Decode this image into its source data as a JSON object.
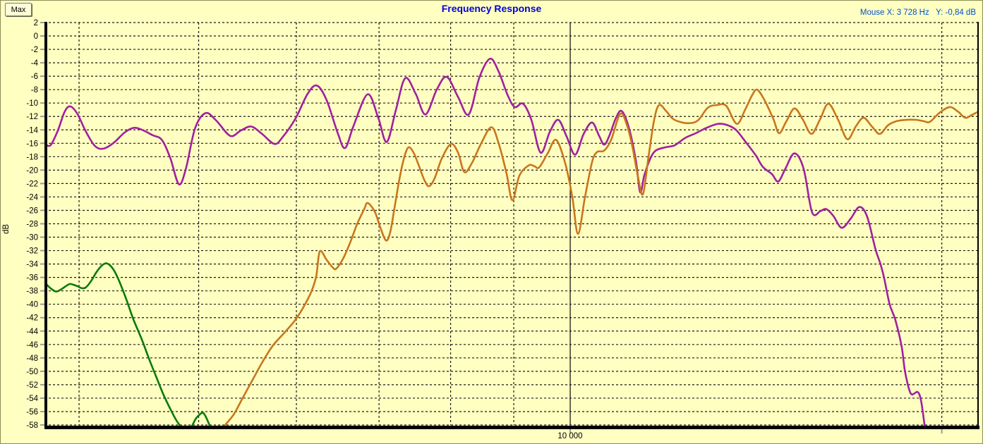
{
  "window": {
    "max_button_label": "Max"
  },
  "header": {
    "title": "Frequency Response",
    "mouse_readout": "Mouse X: 3 728 Hz   Y: -0,84 dB"
  },
  "colors": {
    "background": "#FFFFC1",
    "title_text": "#0000DE",
    "mouse_readout_text": "#0052CC",
    "grid": "#1a1a1a",
    "axis": "#000000",
    "tick": "#9a9a9a",
    "label_text": "#000000",
    "purple_trace": "#A020A0",
    "orange_trace": "#C8761E",
    "green_trace": "#0A7A0A"
  },
  "chart_data": {
    "type": "line",
    "title": "Frequency Response",
    "ylabel": "dB",
    "x_axis": {
      "scale": "log",
      "unit": "Hz",
      "min_hz": 3750,
      "max_hz": 21400,
      "gridlines_hz": [
        4000,
        5000,
        6000,
        7000,
        8000,
        9000,
        10000,
        20000
      ],
      "solid_gridline_hz": 10000,
      "ticks": [
        {
          "hz": 10000,
          "label": "10 000"
        },
        {
          "hz": 20000,
          "label": ""
        }
      ]
    },
    "y_axis": {
      "unit": "dB",
      "max_db": 2,
      "min_db": -58,
      "step_db": 2,
      "tick_labels": [
        "2",
        "0",
        "-2",
        "-4",
        "-6",
        "-8",
        "-10",
        "-12",
        "-14",
        "-16",
        "-18",
        "-20",
        "-22",
        "-24",
        "-26",
        "-28",
        "-30",
        "-32",
        "-34",
        "-36",
        "-38",
        "-40",
        "-42",
        "-44",
        "-46",
        "-48",
        "-50",
        "-52",
        "-54",
        "-56",
        "-58"
      ]
    },
    "grid": true,
    "legend": false,
    "series": [
      {
        "name": "green-trace",
        "color_key": "green_trace",
        "points": [
          [
            3753,
            -36.8
          ],
          [
            3792,
            -37.6
          ],
          [
            3831,
            -38.1
          ],
          [
            3867,
            -37.8
          ],
          [
            3918,
            -37.1
          ],
          [
            3942,
            -37.0
          ],
          [
            3987,
            -37.3
          ],
          [
            4020,
            -37.6
          ],
          [
            4050,
            -37.5
          ],
          [
            4089,
            -36.6
          ],
          [
            4129,
            -35.3
          ],
          [
            4165,
            -34.4
          ],
          [
            4202,
            -33.9
          ],
          [
            4238,
            -34.2
          ],
          [
            4277,
            -35.2
          ],
          [
            4321,
            -37.0
          ],
          [
            4373,
            -39.5
          ],
          [
            4428,
            -42.3
          ],
          [
            4500,
            -45.4
          ],
          [
            4559,
            -48.2
          ],
          [
            4619,
            -50.8
          ],
          [
            4680,
            -53.4
          ],
          [
            4742,
            -55.6
          ],
          [
            4792,
            -57.2
          ],
          [
            4836,
            -58.3
          ],
          [
            4880,
            -59.6
          ],
          [
            4933,
            -58.3
          ],
          [
            4972,
            -57.1
          ],
          [
            5012,
            -56.4
          ],
          [
            5043,
            -56.2
          ],
          [
            5077,
            -57.1
          ],
          [
            5110,
            -58.4
          ],
          [
            5150,
            -60.5
          ]
        ]
      },
      {
        "name": "purple-trace",
        "color_key": "purple_trace",
        "points": [
          [
            3753,
            -16.1
          ],
          [
            3792,
            -16.3
          ],
          [
            3843,
            -14.2
          ],
          [
            3894,
            -11.3
          ],
          [
            3935,
            -10.5
          ],
          [
            3987,
            -11.6
          ],
          [
            4050,
            -14.2
          ],
          [
            4120,
            -16.4
          ],
          [
            4186,
            -16.8
          ],
          [
            4269,
            -15.9
          ],
          [
            4354,
            -14.4
          ],
          [
            4430,
            -13.7
          ],
          [
            4500,
            -14.0
          ],
          [
            4589,
            -14.8
          ],
          [
            4668,
            -15.5
          ],
          [
            4742,
            -18.2
          ],
          [
            4819,
            -22.1
          ],
          [
            4882,
            -19.8
          ],
          [
            4966,
            -13.8
          ],
          [
            5065,
            -11.5
          ],
          [
            5166,
            -12.6
          ],
          [
            5303,
            -14.9
          ],
          [
            5409,
            -14.1
          ],
          [
            5516,
            -13.5
          ],
          [
            5627,
            -14.6
          ],
          [
            5761,
            -16.1
          ],
          [
            5852,
            -15.0
          ],
          [
            5990,
            -12.3
          ],
          [
            6128,
            -8.6
          ],
          [
            6235,
            -7.4
          ],
          [
            6349,
            -9.6
          ],
          [
            6484,
            -14.6
          ],
          [
            6571,
            -16.7
          ],
          [
            6675,
            -13.4
          ],
          [
            6853,
            -8.7
          ],
          [
            6990,
            -12.2
          ],
          [
            7101,
            -15.8
          ],
          [
            7224,
            -11.0
          ],
          [
            7350,
            -6.3
          ],
          [
            7495,
            -8.6
          ],
          [
            7634,
            -11.7
          ],
          [
            7796,
            -8.0
          ],
          [
            7943,
            -6.1
          ],
          [
            8112,
            -9.1
          ],
          [
            8275,
            -11.7
          ],
          [
            8441,
            -6.2
          ],
          [
            8609,
            -3.4
          ],
          [
            8745,
            -5.2
          ],
          [
            8897,
            -8.8
          ],
          [
            9016,
            -10.6
          ],
          [
            9157,
            -10.1
          ],
          [
            9301,
            -12.5
          ],
          [
            9463,
            -17.4
          ],
          [
            9626,
            -14.3
          ],
          [
            9779,
            -12.5
          ],
          [
            9934,
            -15.0
          ],
          [
            10092,
            -17.7
          ],
          [
            10254,
            -14.6
          ],
          [
            10416,
            -12.9
          ],
          [
            10554,
            -14.9
          ],
          [
            10652,
            -16.2
          ],
          [
            10750,
            -15.0
          ],
          [
            10892,
            -12.2
          ],
          [
            11008,
            -11.2
          ],
          [
            11153,
            -13.6
          ],
          [
            11302,
            -18.5
          ],
          [
            11393,
            -23.3
          ],
          [
            11482,
            -20.8
          ],
          [
            11604,
            -18.4
          ],
          [
            11726,
            -17.1
          ],
          [
            11944,
            -16.6
          ],
          [
            12151,
            -16.3
          ],
          [
            12392,
            -15.2
          ],
          [
            12640,
            -14.5
          ],
          [
            12893,
            -13.7
          ],
          [
            13183,
            -13.1
          ],
          [
            13410,
            -13.3
          ],
          [
            13624,
            -14.0
          ],
          [
            13858,
            -15.7
          ],
          [
            14135,
            -17.8
          ],
          [
            14321,
            -19.5
          ],
          [
            14568,
            -20.6
          ],
          [
            14742,
            -21.7
          ],
          [
            14937,
            -19.8
          ],
          [
            15194,
            -17.5
          ],
          [
            15456,
            -19.8
          ],
          [
            15702,
            -26.3
          ],
          [
            15952,
            -26.1
          ],
          [
            16120,
            -25.8
          ],
          [
            16333,
            -26.8
          ],
          [
            16593,
            -28.6
          ],
          [
            16879,
            -27.2
          ],
          [
            17147,
            -25.5
          ],
          [
            17397,
            -26.9
          ],
          [
            17674,
            -31.8
          ],
          [
            17837,
            -34.0
          ],
          [
            17956,
            -36.0
          ],
          [
            18146,
            -40.0
          ],
          [
            18337,
            -42.3
          ],
          [
            18556,
            -46.3
          ],
          [
            18677,
            -50.1
          ],
          [
            18875,
            -53.3
          ],
          [
            19124,
            -53.1
          ],
          [
            19250,
            -54.6
          ],
          [
            19375,
            -58.3
          ],
          [
            19450,
            -60.5
          ]
        ]
      },
      {
        "name": "orange-trace",
        "color_key": "orange_trace",
        "points": [
          [
            5200,
            -59.5
          ],
          [
            5255,
            -58.0
          ],
          [
            5339,
            -56.4
          ],
          [
            5431,
            -53.9
          ],
          [
            5532,
            -51.2
          ],
          [
            5628,
            -48.7
          ],
          [
            5740,
            -46.2
          ],
          [
            5877,
            -44.1
          ],
          [
            5990,
            -42.3
          ],
          [
            6089,
            -40.2
          ],
          [
            6170,
            -38.1
          ],
          [
            6227,
            -35.8
          ],
          [
            6268,
            -32.1
          ],
          [
            6349,
            -33.4
          ],
          [
            6420,
            -34.5
          ],
          [
            6462,
            -34.7
          ],
          [
            6546,
            -33.2
          ],
          [
            6633,
            -30.8
          ],
          [
            6721,
            -28.0
          ],
          [
            6810,
            -25.8
          ],
          [
            6853,
            -24.9
          ],
          [
            6945,
            -26.2
          ],
          [
            7018,
            -28.6
          ],
          [
            7093,
            -30.5
          ],
          [
            7149,
            -29.2
          ],
          [
            7205,
            -25.6
          ],
          [
            7272,
            -21.3
          ],
          [
            7339,
            -18.0
          ],
          [
            7397,
            -16.6
          ],
          [
            7466,
            -17.4
          ],
          [
            7535,
            -19.2
          ],
          [
            7614,
            -21.4
          ],
          [
            7684,
            -22.4
          ],
          [
            7766,
            -21.2
          ],
          [
            7868,
            -18.3
          ],
          [
            8004,
            -16.1
          ],
          [
            8112,
            -17.4
          ],
          [
            8208,
            -20.3
          ],
          [
            8327,
            -18.9
          ],
          [
            8460,
            -16.2
          ],
          [
            8630,
            -13.6
          ],
          [
            8750,
            -16.0
          ],
          [
            8880,
            -20.5
          ],
          [
            8977,
            -24.5
          ],
          [
            9096,
            -20.8
          ],
          [
            9254,
            -19.3
          ],
          [
            9350,
            -19.4
          ],
          [
            9437,
            -19.6
          ],
          [
            9588,
            -17.5
          ],
          [
            9740,
            -15.5
          ],
          [
            9908,
            -19.0
          ],
          [
            10039,
            -24.0
          ],
          [
            10146,
            -29.5
          ],
          [
            10280,
            -24.0
          ],
          [
            10416,
            -18.8
          ],
          [
            10513,
            -17.3
          ],
          [
            10652,
            -17.1
          ],
          [
            10793,
            -15.5
          ],
          [
            10979,
            -11.6
          ],
          [
            11125,
            -13.5
          ],
          [
            11243,
            -17.0
          ],
          [
            11347,
            -21.0
          ],
          [
            11452,
            -23.6
          ],
          [
            11573,
            -18.0
          ],
          [
            11695,
            -12.5
          ],
          [
            11803,
            -10.3
          ],
          [
            11959,
            -11.2
          ],
          [
            12102,
            -12.3
          ],
          [
            12262,
            -12.8
          ],
          [
            12474,
            -13.0
          ],
          [
            12690,
            -12.6
          ],
          [
            12926,
            -10.7
          ],
          [
            13149,
            -10.3
          ],
          [
            13376,
            -10.4
          ],
          [
            13643,
            -13.1
          ],
          [
            13858,
            -11.0
          ],
          [
            14043,
            -8.8
          ],
          [
            14173,
            -8.0
          ],
          [
            14361,
            -9.5
          ],
          [
            14609,
            -12.4
          ],
          [
            14763,
            -14.5
          ],
          [
            14959,
            -12.8
          ],
          [
            15194,
            -10.8
          ],
          [
            15437,
            -12.5
          ],
          [
            15682,
            -14.6
          ],
          [
            15931,
            -12.5
          ],
          [
            16184,
            -10.1
          ],
          [
            16484,
            -12.5
          ],
          [
            16768,
            -15.4
          ],
          [
            17034,
            -13.5
          ],
          [
            17282,
            -12.2
          ],
          [
            17557,
            -13.5
          ],
          [
            17813,
            -14.6
          ],
          [
            18096,
            -13.3
          ],
          [
            18384,
            -12.7
          ],
          [
            18725,
            -12.5
          ],
          [
            19055,
            -12.5
          ],
          [
            19333,
            -12.7
          ],
          [
            19563,
            -12.8
          ],
          [
            19900,
            -11.5
          ],
          [
            20296,
            -10.6
          ],
          [
            20620,
            -11.3
          ],
          [
            20893,
            -12.2
          ],
          [
            21142,
            -11.8
          ],
          [
            21394,
            -11.3
          ]
        ]
      }
    ]
  }
}
